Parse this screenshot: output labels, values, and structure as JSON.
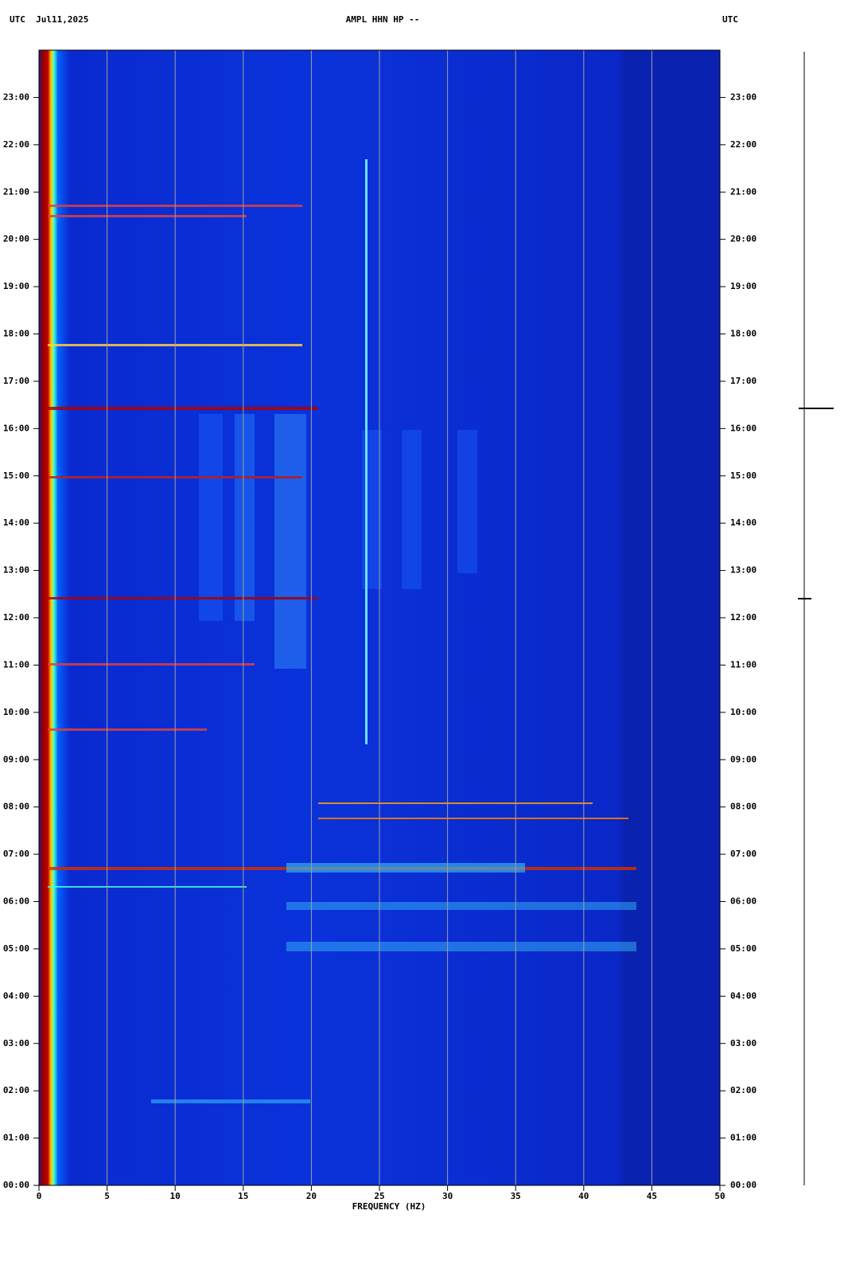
{
  "chart_data": {
    "type": "spectrogram",
    "title": "AMPL HHN HP --",
    "left_label": "UTC  Jul11,2025",
    "right_label": "UTC",
    "x_label": "FREQUENCY (HZ)",
    "xlim": [
      0,
      50
    ],
    "xticks": [
      0,
      5,
      10,
      15,
      20,
      25,
      30,
      35,
      40,
      45,
      50
    ],
    "ylim": [
      0,
      24
    ],
    "yticks": [
      {
        "value": 0,
        "label": "00:00"
      },
      {
        "value": 1,
        "label": "01:00"
      },
      {
        "value": 2,
        "label": "02:00"
      },
      {
        "value": 3,
        "label": "03:00"
      },
      {
        "value": 4,
        "label": "04:00"
      },
      {
        "value": 5,
        "label": "05:00"
      },
      {
        "value": 6,
        "label": "06:00"
      },
      {
        "value": 7,
        "label": "07:00"
      },
      {
        "value": 8,
        "label": "08:00"
      },
      {
        "value": 9,
        "label": "09:00"
      },
      {
        "value": 10,
        "label": "10:00"
      },
      {
        "value": 11,
        "label": "11:00"
      },
      {
        "value": 12,
        "label": "12:00"
      },
      {
        "value": 13,
        "label": "13:00"
      },
      {
        "value": 14,
        "label": "14:00"
      },
      {
        "value": 15,
        "label": "15:00"
      },
      {
        "value": 16,
        "label": "16:00"
      },
      {
        "value": 17,
        "label": "17:00"
      },
      {
        "value": 18,
        "label": "18:00"
      },
      {
        "value": 19,
        "label": "19:00"
      },
      {
        "value": 20,
        "label": "20:00"
      },
      {
        "value": 21,
        "label": "21:00"
      },
      {
        "value": 22,
        "label": "22:00"
      },
      {
        "value": 23,
        "label": "23:00"
      }
    ],
    "grid": true
  }
}
